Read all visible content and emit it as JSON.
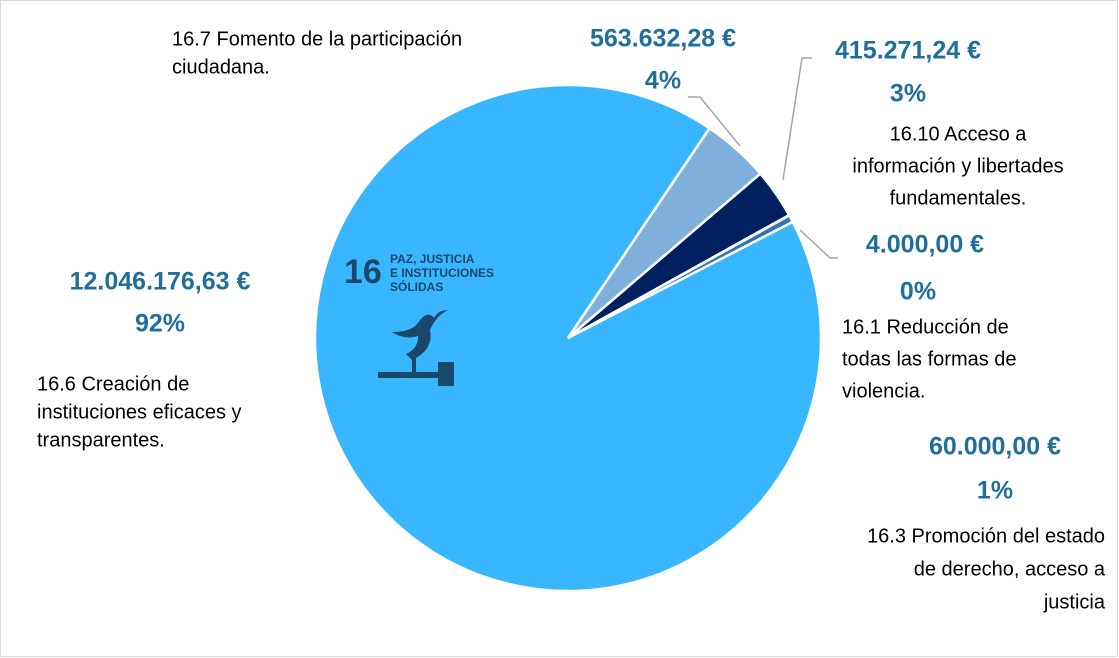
{
  "chart_data": {
    "type": "pie",
    "categories": [
      [
        "16.6 Creación de",
        "instituciones eficaces y",
        "transparentes."
      ],
      [
        "16.7 Fomento de la participación",
        "ciudadana."
      ],
      [
        "16.10 Acceso a",
        "información y libertades",
        "fundamentales."
      ],
      [
        "16.1 Reducción de",
        "todas las formas de",
        "violencia."
      ],
      [
        "16.3 Promoción del estado",
        "de derecho, acceso a",
        "justicia"
      ]
    ],
    "values": [
      12046176.63,
      563632.28,
      415271.24,
      4000.0,
      60000.0
    ],
    "value_labels": [
      "12.046.176,63 €",
      "563.632,28 €",
      "415.271,24 €",
      "4.000,00 €",
      "60.000,00 €"
    ],
    "percent_labels": [
      "92%",
      "4%",
      "3%",
      "0%",
      "1%"
    ],
    "colors": [
      "#38b6ff",
      "#7fb0dd",
      "#002060",
      "#1f4e79",
      "#2e75b6"
    ],
    "logo": {
      "number": "16",
      "lines": [
        "PAZ, JUSTICIA",
        "E INSTITUCIONES",
        "SÓLIDAS"
      ]
    }
  }
}
